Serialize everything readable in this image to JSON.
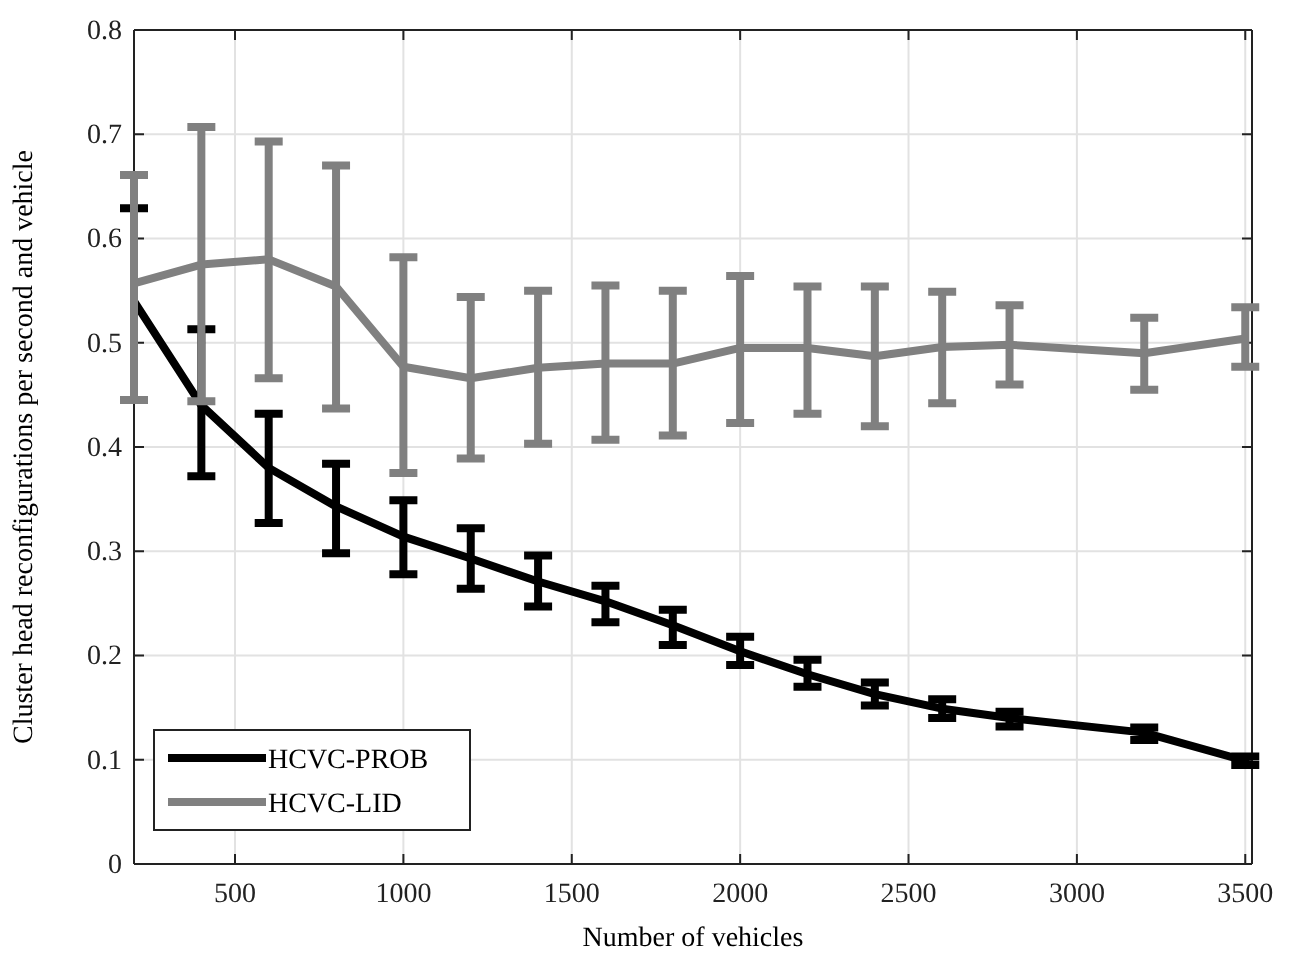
{
  "chart_data": {
    "type": "line",
    "xlabel": "Number of vehicles",
    "ylabel": "Cluster head reconfigurations per second and vehicle",
    "x": [
      200,
      400,
      600,
      800,
      1000,
      1200,
      1400,
      1600,
      1800,
      2000,
      2200,
      2400,
      2600,
      2800,
      3200,
      3500
    ],
    "series": [
      {
        "name": "HCVC-PROB",
        "color": "#000000",
        "values": [
          0.54,
          0.44,
          0.38,
          0.343,
          0.314,
          0.293,
          0.271,
          0.252,
          0.229,
          0.204,
          0.182,
          0.163,
          0.149,
          0.14,
          0.126,
          0.099
        ],
        "errors": [
          [
            0.445,
            0.629
          ],
          [
            0.372,
            0.513
          ],
          [
            0.327,
            0.432
          ],
          [
            0.298,
            0.384
          ],
          [
            0.278,
            0.349
          ],
          [
            0.264,
            0.322
          ],
          [
            0.247,
            0.296
          ],
          [
            0.232,
            0.267
          ],
          [
            0.21,
            0.244
          ],
          [
            0.191,
            0.218
          ],
          [
            0.17,
            0.196
          ],
          [
            0.152,
            0.174
          ],
          [
            0.14,
            0.158
          ],
          [
            0.132,
            0.146
          ],
          [
            0.119,
            0.131
          ],
          [
            0.095,
            0.103
          ]
        ]
      },
      {
        "name": "HCVC-LID",
        "color": "#808080",
        "values": [
          0.557,
          0.575,
          0.58,
          0.554,
          0.477,
          0.466,
          0.476,
          0.48,
          0.48,
          0.495,
          0.495,
          0.487,
          0.496,
          0.498,
          0.49,
          0.504
        ],
        "errors": [
          [
            0.445,
            0.661
          ],
          [
            0.444,
            0.707
          ],
          [
            0.466,
            0.693
          ],
          [
            0.437,
            0.67
          ],
          [
            0.375,
            0.582
          ],
          [
            0.389,
            0.544
          ],
          [
            0.403,
            0.55
          ],
          [
            0.407,
            0.555
          ],
          [
            0.411,
            0.55
          ],
          [
            0.423,
            0.564
          ],
          [
            0.432,
            0.554
          ],
          [
            0.42,
            0.554
          ],
          [
            0.442,
            0.549
          ],
          [
            0.46,
            0.536
          ],
          [
            0.455,
            0.524
          ],
          [
            0.477,
            0.534
          ]
        ]
      }
    ],
    "xlim": [
      200,
      3520
    ],
    "xticks": [
      500,
      1000,
      1500,
      2000,
      2500,
      3000,
      3500
    ],
    "ylim": [
      0,
      0.8
    ],
    "yticks": [
      0,
      0.1,
      0.2,
      0.3,
      0.4,
      0.5,
      0.6,
      0.7,
      0.8
    ],
    "grid": true,
    "legend": "bottom left",
    "marker": "none",
    "line_style": "solid"
  }
}
